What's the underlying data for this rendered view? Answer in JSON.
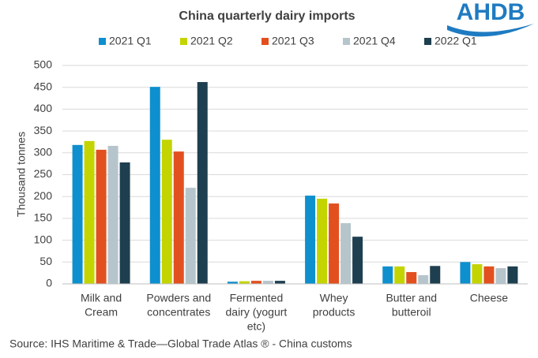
{
  "logo": "AHDB",
  "chart_data": {
    "type": "bar",
    "title": "China quarterly dairy imports",
    "y_label": "Thousand tonnes",
    "source": "Source: IHS Maritime & Trade—Global Trade Atlas ® - China customs",
    "categories": [
      [
        "Milk and",
        "Cream"
      ],
      [
        "Powders and",
        "concentrates"
      ],
      [
        "Fermented",
        "dairy (yogurt",
        "etc)"
      ],
      [
        "Whey",
        "products"
      ],
      [
        "Butter and",
        "butteroil"
      ],
      [
        "Cheese"
      ]
    ],
    "series": [
      {
        "name": "2021 Q1",
        "color": "#0e8fce",
        "values": [
          318,
          451,
          5,
          202,
          40,
          50
        ]
      },
      {
        "name": "2021 Q2",
        "color": "#c3d400",
        "values": [
          327,
          330,
          6,
          195,
          40,
          45
        ]
      },
      {
        "name": "2021 Q3",
        "color": "#e2501f",
        "values": [
          307,
          303,
          7,
          184,
          27,
          40
        ]
      },
      {
        "name": "2021 Q4",
        "color": "#b6c5cc",
        "values": [
          316,
          220,
          7,
          139,
          20,
          36
        ]
      },
      {
        "name": "2022 Q1",
        "color": "#1e3f4f",
        "values": [
          278,
          462,
          7,
          108,
          41,
          40
        ]
      }
    ],
    "ylim": [
      0,
      500
    ],
    "yticks": [
      0,
      50,
      100,
      150,
      200,
      250,
      300,
      350,
      400,
      450,
      500
    ],
    "grid": true
  }
}
